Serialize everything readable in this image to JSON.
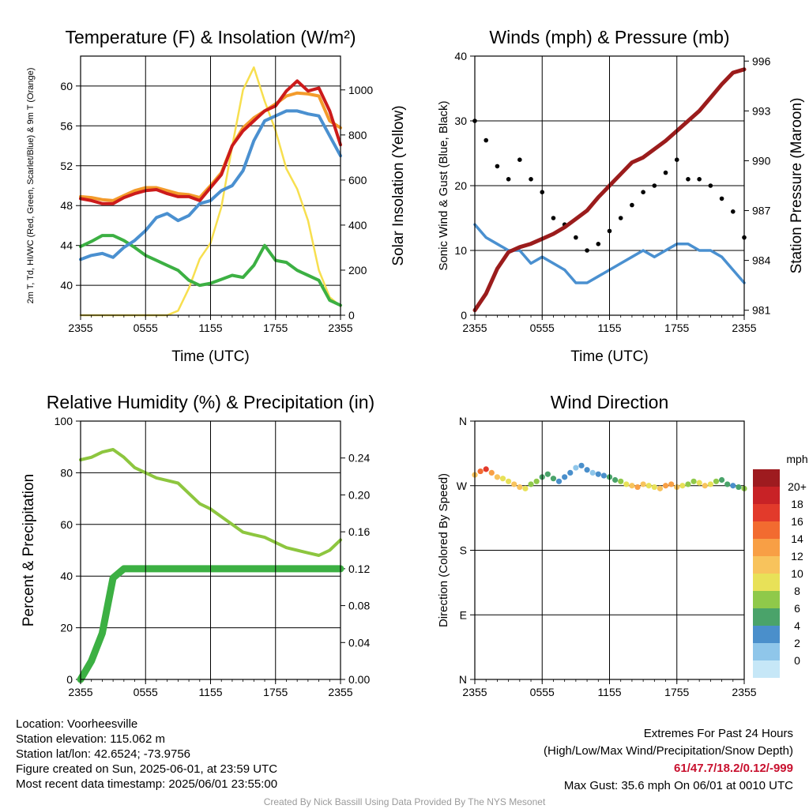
{
  "colors": {
    "temp_red": "#cc1b1b",
    "dewpoint_green": "#3cb043",
    "heat_index_blue": "#4a90d0",
    "temp_9m_orange": "#f39b2b",
    "solar_yellow": "#f7df4f",
    "pressure_maroon": "#9b1c1c",
    "wind_blue": "#4a90d0",
    "gust_black": "#000000",
    "rh_light_green": "#8dc63f",
    "precip_green": "#3cb043"
  },
  "footer": {
    "location": "Location: Voorheesville",
    "elevation": "Station elevation: 115.062 m",
    "latlon": "Station lat/lon: 42.6524; -73.9756",
    "created": "Figure created on Sun, 2025-06-01, at 23:59 UTC",
    "recent": "Most recent data timestamp: 2025/06/01 23:55:00",
    "extremes_title": "Extremes For Past 24 Hours",
    "extremes_desc": "(High/Low/Max Wind/Precipitation/Snow Depth)",
    "extremes_values": "61/47.7/18.2/0.12/-999",
    "max_gust": "Max Gust: 35.6 mph On 06/01 at 0010 UTC",
    "credit": "Created By Nick Bassill Using Data Provided By The NYS Mesonet"
  },
  "chart_data": [
    {
      "type": "line",
      "title": "Temperature (F) & Insolation (W/m²)",
      "xlabel": "Time (UTC)",
      "ylabel": "2m T, Td, HI/WC (Red, Green, Scarlet/Blue) & 9m T (Orange)",
      "ylabel_lines": [
        "2m T, T",
        "d",
        ", HI/WC (Red, Green, Scarlet/Blue)",
        "& 9m T (Orange)"
      ],
      "y2label": "Solar Insolation (Yellow)",
      "x_ticks": [
        "2355",
        "0555",
        "1155",
        "1755",
        "2355"
      ],
      "ylim": [
        37,
        63
      ],
      "y_ticks": [
        40,
        44,
        48,
        52,
        56,
        60
      ],
      "y2lim": [
        0,
        1150
      ],
      "y2_ticks": [
        0,
        200,
        400,
        600,
        800,
        1000
      ],
      "grid": true,
      "x": [
        0,
        1,
        2,
        3,
        4,
        5,
        6,
        7,
        8,
        9,
        10,
        11,
        12,
        13,
        14,
        15,
        16,
        17,
        18,
        19,
        20,
        21,
        22,
        23,
        24
      ],
      "series": [
        {
          "id": "t2m",
          "axis": "left",
          "values": [
            48.7,
            48.5,
            48.2,
            48.2,
            48.8,
            49.2,
            49.5,
            49.6,
            49.2,
            48.9,
            48.9,
            48.5,
            49.8,
            51.1,
            54,
            55.5,
            56.5,
            57.5,
            58,
            59.5,
            60.5,
            59.5,
            59.8,
            57.5,
            54.1
          ]
        },
        {
          "id": "t9m",
          "axis": "left",
          "values": [
            48.9,
            48.8,
            48.6,
            48.5,
            49,
            49.5,
            49.8,
            49.8,
            49.5,
            49.2,
            49.1,
            48.8,
            50,
            51.3,
            54,
            55.8,
            56.8,
            57.5,
            58.2,
            59,
            59.3,
            59.2,
            59,
            56.5,
            55.8
          ]
        },
        {
          "id": "heat_index",
          "axis": "left",
          "values": [
            42.6,
            43,
            43.2,
            42.8,
            43.8,
            44.5,
            45.5,
            46.8,
            47.2,
            46.5,
            47,
            48.2,
            48.5,
            49.5,
            50,
            51.5,
            54.5,
            56.5,
            57,
            57.5,
            57.5,
            57.2,
            57,
            55,
            53
          ]
        },
        {
          "id": "dewpoint",
          "axis": "left",
          "values": [
            43.9,
            44.4,
            45,
            45,
            44.5,
            43.8,
            43,
            42.5,
            42,
            41.5,
            40.5,
            40,
            40.2,
            40.6,
            41,
            40.8,
            42,
            44,
            42.5,
            42.3,
            41.5,
            41,
            40.5,
            38.5,
            38
          ]
        },
        {
          "id": "solar",
          "axis": "right",
          "values": [
            0,
            0,
            0,
            0,
            0,
            0,
            0,
            0,
            0,
            20,
            120,
            250,
            320,
            480,
            750,
            1000,
            1100,
            950,
            820,
            650,
            560,
            420,
            200,
            80,
            40
          ]
        }
      ]
    },
    {
      "type": "line",
      "title": "Winds (mph) & Pressure (mb)",
      "xlabel": "Time (UTC)",
      "ylabel": "Sonic Wind & Gust (Blue, Black)",
      "y2label": "Station Pressure (Maroon)",
      "x_ticks": [
        "2355",
        "0555",
        "1155",
        "1755",
        "2355"
      ],
      "ylim": [
        0,
        40
      ],
      "y_ticks": [
        0,
        10,
        20,
        30,
        40
      ],
      "y2lim": [
        980.7,
        996.3
      ],
      "y2_ticks": [
        981,
        984,
        987,
        990,
        993,
        996
      ],
      "grid": true,
      "x": [
        0,
        1,
        2,
        3,
        4,
        5,
        6,
        7,
        8,
        9,
        10,
        11,
        12,
        13,
        14,
        15,
        16,
        17,
        18,
        19,
        20,
        21,
        22,
        23,
        24
      ],
      "series": [
        {
          "id": "wind",
          "axis": "left",
          "values": [
            14,
            12,
            11,
            10,
            10,
            8,
            9,
            8,
            7,
            5,
            5,
            6,
            7,
            8,
            9,
            10,
            9,
            10,
            11,
            11,
            10,
            10,
            9,
            7,
            5
          ]
        },
        {
          "id": "gust",
          "axis": "left",
          "marker": "dot",
          "values": [
            30,
            27,
            23,
            21,
            24,
            21,
            19,
            15,
            14,
            12,
            10,
            11,
            13,
            15,
            17,
            19,
            20,
            22,
            24,
            21,
            21,
            20,
            18,
            16,
            12
          ]
        },
        {
          "id": "pressure",
          "axis": "right",
          "values": [
            981,
            982,
            983.5,
            984.5,
            984.8,
            985,
            985.3,
            985.6,
            986,
            986.5,
            987,
            987.8,
            988.5,
            989.2,
            989.9,
            990.2,
            990.7,
            991.2,
            991.8,
            992.4,
            993,
            993.8,
            994.6,
            995.3,
            995.5
          ]
        }
      ]
    },
    {
      "type": "line",
      "title": "Relative Humidity (%) & Precipitation (in)",
      "xlabel": "",
      "ylabel": "Percent & Precipitation",
      "x_ticks": [
        "2355",
        "0555",
        "1155",
        "1755",
        "2355"
      ],
      "ylim": [
        0,
        100
      ],
      "y_ticks": [
        0,
        20,
        40,
        60,
        80,
        100
      ],
      "y2lim": [
        0,
        0.28
      ],
      "y2_ticks": [
        "0.00",
        "0.04",
        "0.08",
        "0.12",
        "0.16",
        "0.20",
        "0.24"
      ],
      "grid": true,
      "x": [
        0,
        1,
        2,
        3,
        4,
        5,
        6,
        7,
        8,
        9,
        10,
        11,
        12,
        13,
        14,
        15,
        16,
        17,
        18,
        19,
        20,
        21,
        22,
        23,
        24
      ],
      "series": [
        {
          "id": "rh",
          "axis": "left",
          "values": [
            85,
            86,
            88,
            89,
            86,
            82,
            80,
            78,
            77,
            76,
            72,
            68,
            66,
            63,
            60,
            57,
            56,
            55,
            53,
            51,
            50,
            49,
            48,
            50,
            54
          ]
        },
        {
          "id": "precip",
          "axis": "right",
          "values": [
            0,
            0.02,
            0.05,
            0.11,
            0.12,
            0.12,
            0.12,
            0.12,
            0.12,
            0.12,
            0.12,
            0.12,
            0.12,
            0.12,
            0.12,
            0.12,
            0.12,
            0.12,
            0.12,
            0.12,
            0.12,
            0.12,
            0.12,
            0.12,
            0.12
          ]
        }
      ]
    },
    {
      "type": "scatter",
      "title": "Wind Direction",
      "xlabel": "",
      "ylabel": "Direction (Colored By Speed)",
      "x_ticks": [
        "2355",
        "0555",
        "1155",
        "1755",
        "2355"
      ],
      "ylim": [
        0,
        360
      ],
      "y_ticks": [
        {
          "value": 0,
          "label": "N"
        },
        {
          "value": 90,
          "label": "E"
        },
        {
          "value": 180,
          "label": "S"
        },
        {
          "value": 270,
          "label": "W"
        },
        {
          "value": 360,
          "label": "N"
        }
      ],
      "grid": true,
      "x": [
        0,
        0.5,
        1,
        1.5,
        2,
        2.5,
        3,
        3.5,
        4,
        4.5,
        5,
        5.5,
        6,
        6.5,
        7,
        7.5,
        8,
        8.5,
        9,
        9.5,
        10,
        10.5,
        11,
        11.5,
        12,
        12.5,
        13,
        13.5,
        14,
        14.5,
        15,
        15.5,
        16,
        16.5,
        17,
        17.5,
        18,
        18.5,
        19,
        19.5,
        20,
        20.5,
        21,
        21.5,
        22,
        22.5,
        23,
        23.5,
        24
      ],
      "series": [
        {
          "id": "direction",
          "values": [
            285,
            290,
            293,
            288,
            282,
            280,
            276,
            272,
            268,
            266,
            272,
            276,
            282,
            286,
            280,
            276,
            282,
            288,
            295,
            298,
            292,
            288,
            286,
            284,
            282,
            278,
            276,
            272,
            270,
            268,
            272,
            270,
            268,
            266,
            270,
            272,
            268,
            270,
            272,
            276,
            274,
            270,
            272,
            276,
            278,
            272,
            270,
            268,
            266
          ],
          "speed": [
            12,
            16,
            18,
            14,
            12,
            10,
            11,
            12,
            13,
            10,
            9,
            8,
            7,
            6,
            6,
            5,
            4,
            4,
            3,
            4,
            5,
            3,
            4,
            5,
            6,
            7,
            9,
            10,
            12,
            14,
            13,
            10,
            11,
            13,
            14,
            15,
            12,
            10,
            9,
            8,
            10,
            12,
            11,
            9,
            7,
            6,
            5,
            7,
            8
          ]
        }
      ],
      "legend": {
        "title": "mph",
        "placement": "right",
        "labels": [
          "20+",
          "18",
          "16",
          "14",
          "12",
          "10",
          "8",
          "6",
          "4",
          "2",
          "0"
        ],
        "colors": [
          "#9e1b1f",
          "#c82226",
          "#e23a2b",
          "#f26b30",
          "#f89f45",
          "#f8c35c",
          "#e8e158",
          "#8fc94a",
          "#4aa36a",
          "#4a8fcb",
          "#8fc6ea",
          "#c6e7f7"
        ]
      }
    }
  ]
}
